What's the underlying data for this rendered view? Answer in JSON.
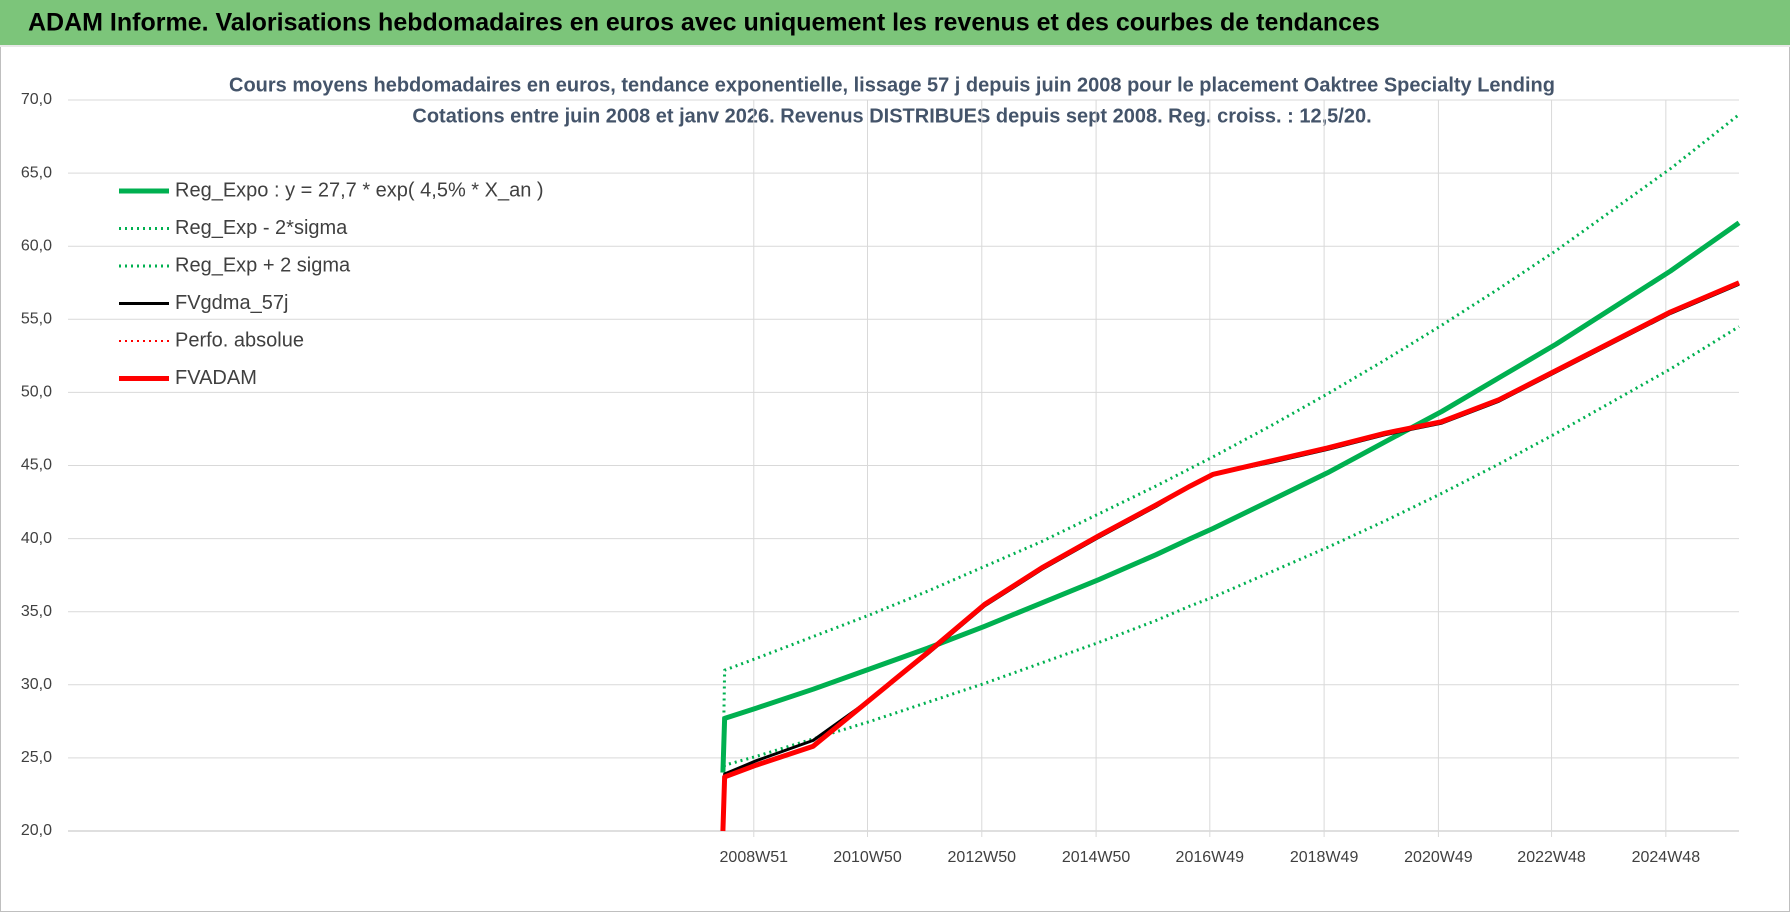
{
  "chart_data": {
    "type": "line",
    "banner": "ADAM Informe. Valorisations hebdomadaires en euros avec uniquement les revenus et des courbes de tendances",
    "title": "Cours moyens hebdomadaires en euros, tendance exponentielle, lissage 57 j depuis juin 2008 pour le placement Oaktree Specialty Lending",
    "subtitle": "Cotations entre juin 2008 et janv 2026.  Revenus DISTRIBUES depuis sept 2008.  Reg. croiss. : 12,5/20.",
    "x": [
      2008.42,
      2008.45,
      2009,
      2010,
      2011,
      2012,
      2013,
      2014,
      2015,
      2016,
      2016.6,
      2017,
      2018,
      2019,
      2020,
      2021,
      2022,
      2023,
      2024,
      2025,
      2026.2
    ],
    "xlim": [
      1996.96,
      2026.2
    ],
    "xticks": [
      {
        "value": 2008.96,
        "label": "2008W51"
      },
      {
        "value": 2010.95,
        "label": "2010W50"
      },
      {
        "value": 2012.95,
        "label": "2012W50"
      },
      {
        "value": 2014.95,
        "label": "2014W50"
      },
      {
        "value": 2016.94,
        "label": "2016W49"
      },
      {
        "value": 2018.94,
        "label": "2018W49"
      },
      {
        "value": 2020.94,
        "label": "2020W49"
      },
      {
        "value": 2022.92,
        "label": "2022W48"
      },
      {
        "value": 2024.92,
        "label": "2024W48"
      }
    ],
    "ylim": [
      20,
      70
    ],
    "yticks": [
      {
        "value": 20,
        "label": "20,0"
      },
      {
        "value": 25,
        "label": "25,0"
      },
      {
        "value": 30,
        "label": "30,0"
      },
      {
        "value": 35,
        "label": "35,0"
      },
      {
        "value": 40,
        "label": "40,0"
      },
      {
        "value": 45,
        "label": "45,0"
      },
      {
        "value": 50,
        "label": "50,0"
      },
      {
        "value": 55,
        "label": "55,0"
      },
      {
        "value": 60,
        "label": "60,0"
      },
      {
        "value": 65,
        "label": "65,0"
      },
      {
        "value": 70,
        "label": "70,0"
      }
    ],
    "grid": true,
    "legend": "top-left",
    "series": [
      {
        "name": "Reg_Expo : y = 27,7 * exp( 4,5% *  X_an )",
        "color": "#00b050",
        "style": "solid",
        "width": 5,
        "values": [
          24.0,
          27.7,
          28.4,
          29.7,
          31.1,
          32.5,
          34.0,
          35.6,
          37.2,
          38.9,
          40.0,
          40.7,
          42.6,
          44.5,
          46.6,
          48.7,
          51.0,
          53.3,
          55.8,
          58.3,
          61.6
        ]
      },
      {
        "name": "Reg_Exp - 2*sigma",
        "color": "#00b050",
        "style": "dotted",
        "width": 3,
        "values": [
          24.0,
          24.5,
          25.1,
          26.3,
          27.5,
          28.8,
          30.1,
          31.5,
          32.9,
          34.4,
          35.4,
          36.0,
          37.7,
          39.4,
          41.2,
          43.1,
          45.1,
          47.2,
          49.4,
          51.6,
          54.5
        ]
      },
      {
        "name": "Reg_Exp + 2 sigma",
        "color": "#00b050",
        "style": "dotted",
        "width": 3,
        "values": [
          24.0,
          31.0,
          31.8,
          33.3,
          34.8,
          36.4,
          38.1,
          39.8,
          41.7,
          43.6,
          44.8,
          45.6,
          47.7,
          49.9,
          52.2,
          54.6,
          57.1,
          59.7,
          62.5,
          65.3,
          69.0
        ]
      },
      {
        "name": "FVgdma_57j",
        "color": "#000000",
        "style": "solid",
        "width": 3,
        "values": [
          20.0,
          23.9,
          24.8,
          26.2,
          29.0,
          32.1,
          35.4,
          37.9,
          40.1,
          42.2,
          43.6,
          44.4,
          45.2,
          46.1,
          47.1,
          47.9,
          49.4,
          51.4,
          53.4,
          55.4,
          57.4
        ]
      },
      {
        "name": "Perfo. absolue",
        "color": "#ff0000",
        "style": "dotted",
        "width": 2,
        "values": [
          20.0,
          23.7,
          24.5,
          25.8,
          29.0,
          32.2,
          35.5,
          38.0,
          40.2,
          42.3,
          43.6,
          44.4,
          45.3,
          46.2,
          47.2,
          48.0,
          49.5,
          51.5,
          53.5,
          55.5,
          57.5
        ]
      },
      {
        "name": "FVADAM",
        "color": "#ff0000",
        "style": "solid",
        "width": 5,
        "values": [
          20.0,
          23.7,
          24.5,
          25.8,
          29.0,
          32.2,
          35.5,
          38.0,
          40.2,
          42.3,
          43.6,
          44.4,
          45.3,
          46.2,
          47.2,
          48.0,
          49.5,
          51.5,
          53.5,
          55.5,
          57.5
        ]
      }
    ]
  }
}
